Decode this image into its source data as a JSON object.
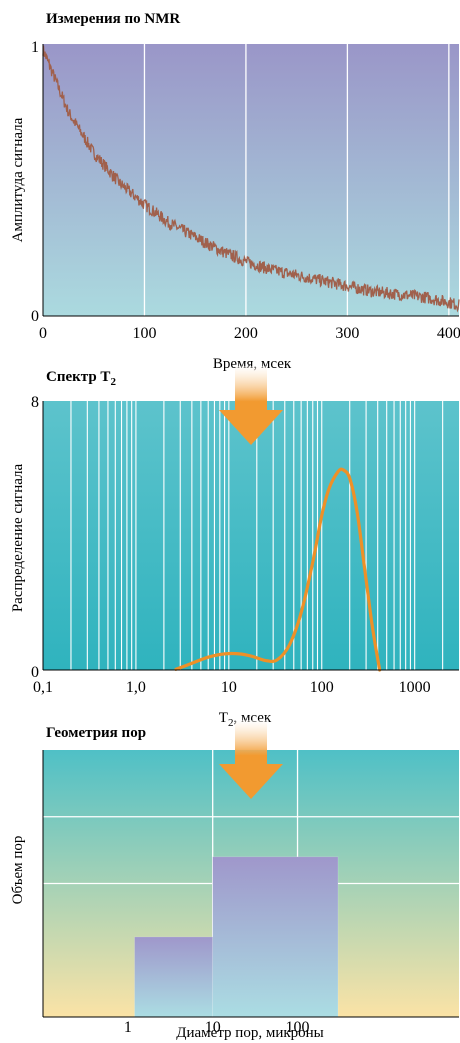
{
  "colors": {
    "decay_line": "#a0604c",
    "t2_curve": "#ee9027",
    "arrow": "#f29a30",
    "panel1_top": "#9a96c8",
    "panel1_bottom": "#abdadf",
    "panel2_top": "#5dc3cc",
    "panel2_bottom": "#2fb3be",
    "panel3_top": "#4fc0c6",
    "panel3_bottom": "#fbe3a6",
    "bar_top": "#9f97cb",
    "bar_bottom": "#abdde3"
  },
  "chart_data": [
    {
      "type": "line",
      "title": "Измерения по NMR",
      "xlabel": "Время, мсек",
      "ylabel": "Амплитуда сигнала",
      "xlim": [
        0,
        410
      ],
      "ylim": [
        0,
        1
      ],
      "xticks": [
        "0",
        "100",
        "200",
        "300",
        "400"
      ],
      "yticks": [
        "0",
        "1"
      ],
      "grid": "vertical",
      "series": [
        {
          "x": [
            0,
            25,
            50,
            75,
            100,
            125,
            150,
            175,
            200,
            225,
            250,
            275,
            300,
            325,
            350,
            375,
            400,
            410
          ],
          "y": [
            0.98,
            0.75,
            0.6,
            0.49,
            0.41,
            0.34,
            0.29,
            0.24,
            0.2,
            0.17,
            0.15,
            0.13,
            0.11,
            0.09,
            0.08,
            0.07,
            0.05,
            0.04
          ]
        }
      ]
    },
    {
      "type": "line",
      "title": "Спектр T",
      "title_sub": "2",
      "xlabel": "T",
      "xlabel_sub": "2",
      "xlabel_tail": ", мсек",
      "ylabel": "Распределение сигнала",
      "xscale": "log",
      "xlim": [
        0.1,
        3000
      ],
      "ylim": [
        0,
        8
      ],
      "xticks": [
        "0,1",
        "1,0",
        "10",
        "100",
        "1000"
      ],
      "yticks": [
        "0",
        "8"
      ],
      "grid": "vertical-log",
      "series": [
        {
          "x": [
            2.7,
            4,
            6,
            9,
            13,
            18,
            25,
            33,
            45,
            60,
            80,
            100,
            120,
            150,
            170,
            200,
            240,
            290,
            350,
            420
          ],
          "y": [
            0.02,
            0.2,
            0.38,
            0.48,
            0.48,
            0.4,
            0.28,
            0.3,
            0.75,
            1.7,
            3.2,
            4.6,
            5.4,
            5.9,
            5.95,
            5.7,
            4.7,
            3.0,
            1.3,
            0.0
          ]
        }
      ]
    },
    {
      "type": "bar",
      "title": "Геометрия пор",
      "xlabel": "Диаметр пор, микроны",
      "ylabel": "Объем пор",
      "xscale": "log",
      "xlim": [
        0.1,
        8000
      ],
      "ylim": [
        0,
        4
      ],
      "xticks": [
        "1",
        "10",
        "100"
      ],
      "grid": "both",
      "bins": [
        {
          "x0": 1.2,
          "x1": 10,
          "value": 1.2
        },
        {
          "x0": 10,
          "x1": 300,
          "value": 2.4
        }
      ]
    }
  ]
}
